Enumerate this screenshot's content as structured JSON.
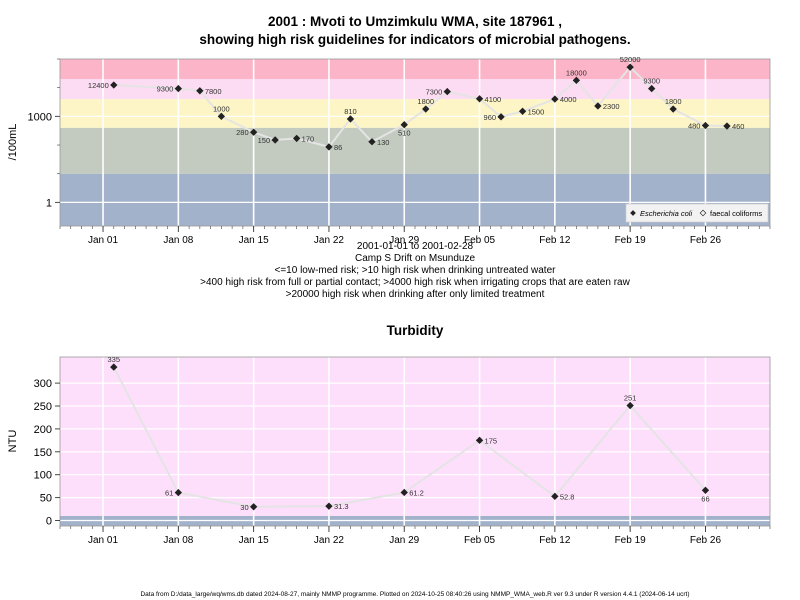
{
  "title_line1": "2001 : Mvoti to Umzimkulu WMA, site 187961 ,",
  "title_line2": "showing high risk guidelines for indicators of microbial pathogens.",
  "subtitle_lines": [
    "2001-01-01 to 2001-02-28",
    "Camp S Drift on Msunduze",
    "<=10 low-med risk; >10 high risk when drinking untreated water",
    ">400 high risk from full or partial contact; >4000 high risk when irrigating crops that are eaten raw",
    ">20000 high risk when drinking after only limited treatment"
  ],
  "footer": "Data from D:/data_large/wq/wms.db dated 2024-08-27, mainly NMMP programme. Plotted on 2024-10-25 08:40:26 using NMMP_WMA_web.R ver 9.3 under R version 4.4.1 (2024-06-14 ucrt)",
  "colors": {
    "band_blue": "#a3b2cb",
    "band_green": "#c3cbc1",
    "band_yellow": "#fdf5c6",
    "band_pink": "#fcdcf3",
    "band_red": "#fcb5c8",
    "panel_bg": "#fddffb",
    "line": "#e4e4e4",
    "point": "#222222",
    "grid": "#ffffff"
  },
  "chart_data": [
    {
      "type": "line",
      "ylabel": "/100mL",
      "y_scale": "log10",
      "ylim": [
        0.15,
        100000
      ],
      "yticks": [
        1,
        1000
      ],
      "ytick_labels": [
        "1",
        "1000"
      ],
      "x_axis": "date",
      "xlim": [
        "2000-12-28",
        "2001-03-04"
      ],
      "xticks": [
        "2001-01-01",
        "2001-01-08",
        "2001-01-15",
        "2001-01-22",
        "2001-01-29",
        "2001-02-05",
        "2001-02-12",
        "2001-02-19",
        "2001-02-26"
      ],
      "xtick_labels": [
        "Jan 01",
        "Jan 08",
        "Jan 15",
        "Jan 22",
        "Jan 29",
        "Feb 05",
        "Feb 12",
        "Feb 19",
        "Feb 26"
      ],
      "risk_bands": [
        {
          "from": 0.15,
          "to": 10,
          "color": "#a3b2cb"
        },
        {
          "from": 10,
          "to": 400,
          "color": "#c3cbc1"
        },
        {
          "from": 400,
          "to": 4000,
          "color": "#fdf5c6"
        },
        {
          "from": 4000,
          "to": 20000,
          "color": "#fcdcf3"
        },
        {
          "from": 20000,
          "to": 100000,
          "color": "#fcb5c8"
        }
      ],
      "legend": {
        "position": "bottom-right",
        "entries": [
          "Escherichia coli",
          "faecal coliforms"
        ]
      },
      "series": [
        {
          "name": "Escherichia coli",
          "points": [
            {
              "x": "2001-01-02",
              "y": 12400,
              "label": "12400",
              "pos": "left"
            },
            {
              "x": "2001-01-08",
              "y": 9300,
              "label": "9300",
              "pos": "left"
            },
            {
              "x": "2001-01-10",
              "y": 7800,
              "label": "7800",
              "pos": "right"
            },
            {
              "x": "2001-01-12",
              "y": 1000,
              "label": "1000",
              "pos": "above"
            },
            {
              "x": "2001-01-15",
              "y": 280,
              "label": "280",
              "pos": "left"
            },
            {
              "x": "2001-01-17",
              "y": 150,
              "label": "150",
              "pos": "left"
            },
            {
              "x": "2001-01-19",
              "y": 170,
              "label": "170",
              "pos": "right"
            },
            {
              "x": "2001-01-22",
              "y": 86,
              "label": "86",
              "pos": "right"
            },
            {
              "x": "2001-01-24",
              "y": 810,
              "label": "810",
              "pos": "above"
            },
            {
              "x": "2001-01-26",
              "y": 130,
              "label": "130",
              "pos": "right"
            },
            {
              "x": "2001-01-29",
              "y": 510,
              "label": "510",
              "pos": "below"
            },
            {
              "x": "2001-01-31",
              "y": 1800,
              "label": "1800",
              "pos": "above"
            },
            {
              "x": "2001-02-02",
              "y": 7300,
              "label": "7300",
              "pos": "left"
            },
            {
              "x": "2001-02-05",
              "y": 4100,
              "label": "4100",
              "pos": "right"
            },
            {
              "x": "2001-02-07",
              "y": 960,
              "label": "960",
              "pos": "left"
            },
            {
              "x": "2001-02-09",
              "y": 1500,
              "label": "1500",
              "pos": "right"
            },
            {
              "x": "2001-02-12",
              "y": 4000,
              "label": "4000",
              "pos": "right"
            },
            {
              "x": "2001-02-14",
              "y": 18000,
              "label": "18000",
              "pos": "above"
            },
            {
              "x": "2001-02-16",
              "y": 2300,
              "label": "2300",
              "pos": "right"
            },
            {
              "x": "2001-02-19",
              "y": 52000,
              "label": "52000",
              "pos": "above"
            },
            {
              "x": "2001-02-21",
              "y": 9300,
              "label": "9300",
              "pos": "above"
            },
            {
              "x": "2001-02-23",
              "y": 1800,
              "label": "1800",
              "pos": "above"
            },
            {
              "x": "2001-02-26",
              "y": 480,
              "label": "480",
              "pos": "left"
            },
            {
              "x": "2001-02-28",
              "y": 460,
              "label": "460",
              "pos": "right"
            }
          ]
        }
      ]
    },
    {
      "type": "line",
      "title": "Turbidity",
      "ylabel": "NTU",
      "ylim": [
        -12,
        357
      ],
      "yticks": [
        0,
        50,
        100,
        150,
        200,
        250,
        300
      ],
      "ytick_labels": [
        "0",
        "50",
        "100",
        "150",
        "200",
        "250",
        "300"
      ],
      "x_axis": "date",
      "xlim": [
        "2000-12-28",
        "2001-03-04"
      ],
      "xticks": [
        "2001-01-01",
        "2001-01-08",
        "2001-01-15",
        "2001-01-22",
        "2001-01-29",
        "2001-02-05",
        "2001-02-12",
        "2001-02-19",
        "2001-02-26"
      ],
      "xtick_labels": [
        "Jan 01",
        "Jan 08",
        "Jan 15",
        "Jan 22",
        "Jan 29",
        "Feb 05",
        "Feb 12",
        "Feb 19",
        "Feb 26"
      ],
      "risk_bands": [
        {
          "from": -12,
          "to": 10,
          "color": "#a3b2cb"
        },
        {
          "from": 10,
          "to": 357,
          "color": "#fddffb"
        }
      ],
      "series": [
        {
          "name": "",
          "points": [
            {
              "x": "2001-01-02",
              "y": 335,
              "label": "335",
              "pos": "above"
            },
            {
              "x": "2001-01-08",
              "y": 61,
              "label": "61",
              "pos": "left"
            },
            {
              "x": "2001-01-15",
              "y": 30,
              "label": "30",
              "pos": "left"
            },
            {
              "x": "2001-01-22",
              "y": 31.3,
              "label": "31.3",
              "pos": "right"
            },
            {
              "x": "2001-01-29",
              "y": 61.2,
              "label": "61.2",
              "pos": "right"
            },
            {
              "x": "2001-02-05",
              "y": 175,
              "label": "175",
              "pos": "right"
            },
            {
              "x": "2001-02-12",
              "y": 52.8,
              "label": "52.8",
              "pos": "right"
            },
            {
              "x": "2001-02-19",
              "y": 251,
              "label": "251",
              "pos": "above"
            },
            {
              "x": "2001-02-26",
              "y": 66,
              "label": "66",
              "pos": "below"
            }
          ]
        }
      ]
    }
  ]
}
